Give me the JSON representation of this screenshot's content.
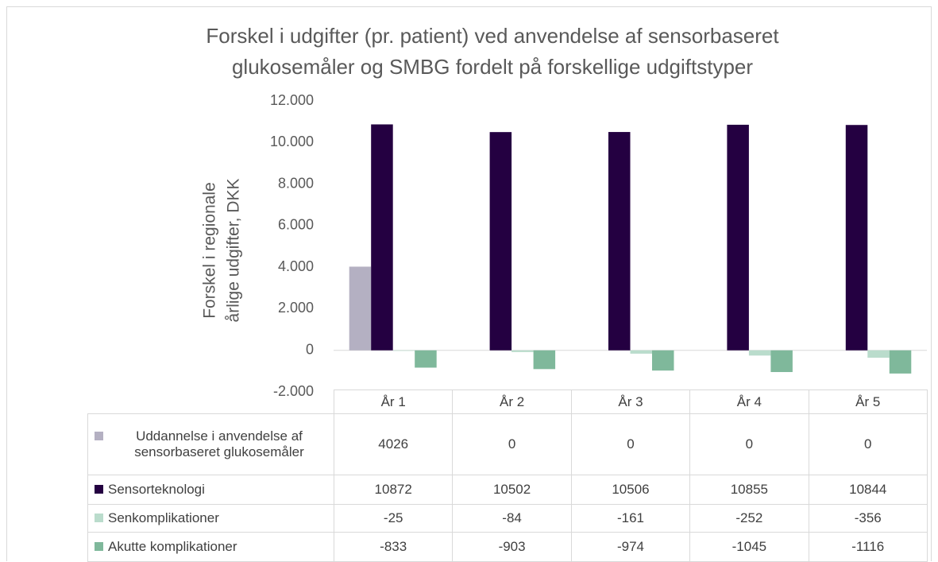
{
  "chart_data": {
    "type": "bar",
    "title": [
      "Forskel i udgifter (pr. patient) ved anvendelse af sensorbaseret",
      "glukosemåler og SMBG fordelt på forskellige udgiftstyper"
    ],
    "y_label": [
      "Forskel i regionale",
      "årlige udgifter, DKK"
    ],
    "categories": [
      "År 1",
      "År 2",
      "År 3",
      "År 4",
      "År 5"
    ],
    "series": [
      {
        "name": "Uddannelse i anvendelse af sensorbaseret glukosemåler",
        "color": "#b4b0c2",
        "values": [
          4026,
          0,
          0,
          0,
          0
        ]
      },
      {
        "name": "Sensorteknologi",
        "color": "#240041",
        "values": [
          10872,
          10502,
          10506,
          10855,
          10844
        ]
      },
      {
        "name": "Senkomplikationer",
        "color": "#badccc",
        "values": [
          -25,
          -84,
          -161,
          -252,
          -356
        ]
      },
      {
        "name": "Akutte komplikationer",
        "color": "#7fb89b",
        "values": [
          -833,
          -903,
          -974,
          -1045,
          -1116
        ]
      }
    ],
    "ylim": [
      -2000,
      12000
    ],
    "yticks": [
      {
        "value": -2000,
        "label": "-2.000"
      },
      0,
      {
        "value": 2000,
        "label": "2.000"
      },
      {
        "value": 4000,
        "label": "4.000"
      },
      {
        "value": 6000,
        "label": "6.000"
      },
      {
        "value": 8000,
        "label": "8.000"
      },
      {
        "value": 10000,
        "label": "10.000"
      },
      {
        "value": 12000,
        "label": "12.000"
      }
    ],
    "grid": false
  }
}
